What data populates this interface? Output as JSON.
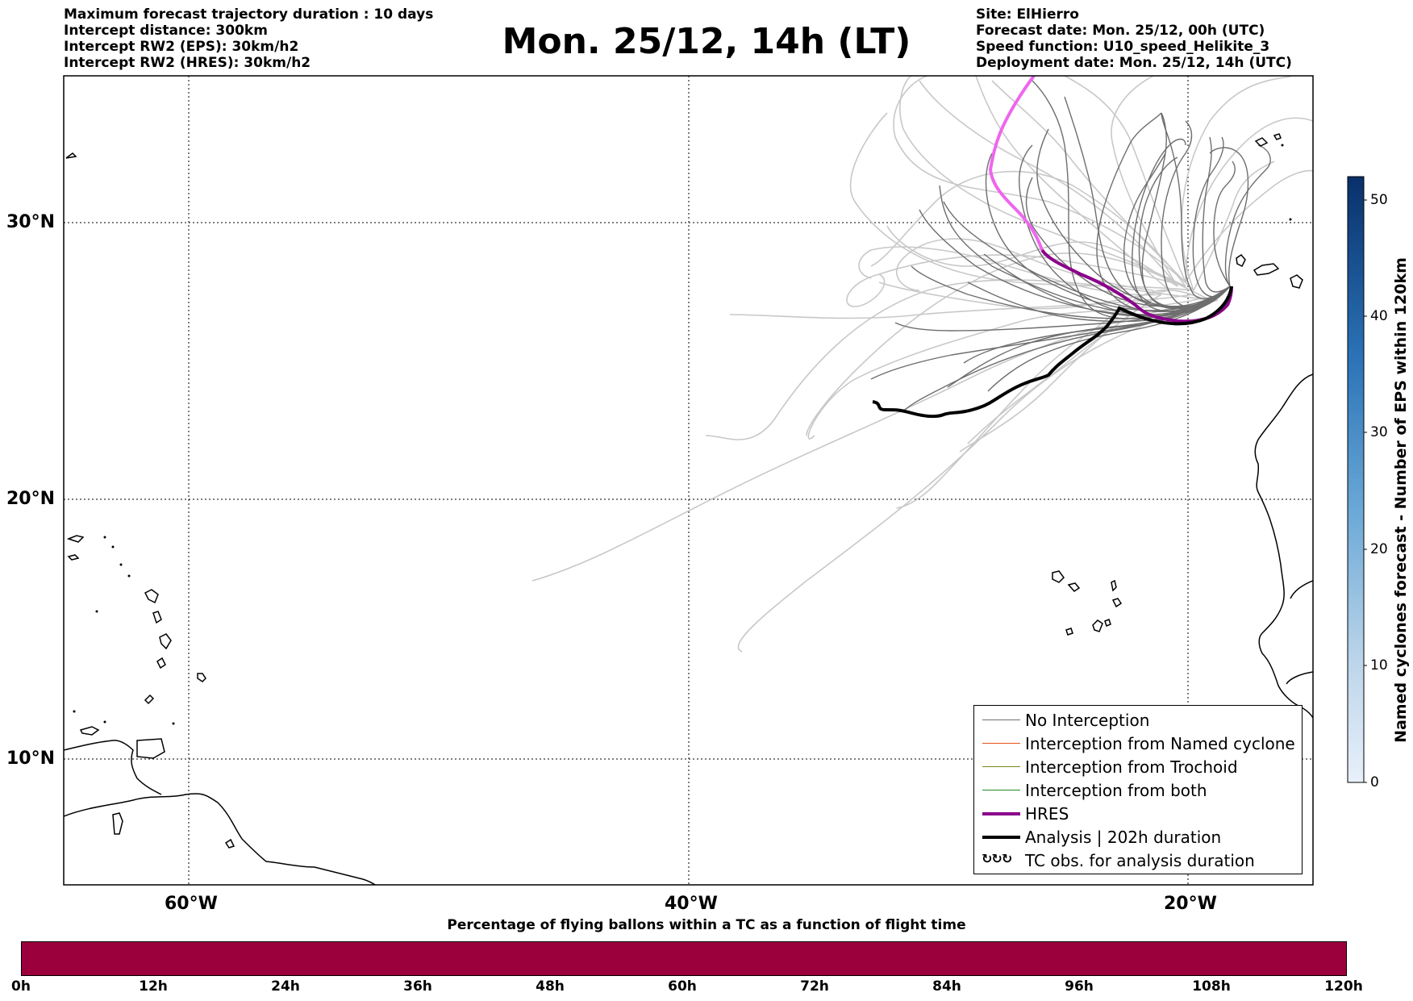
{
  "header": {
    "left": [
      "Maximum forecast trajectory duration : 10 days",
      "Intercept distance: 300km",
      "Intercept RW2 (EPS):  30km/h2",
      "Intercept RW2 (HRES): 30km/h2"
    ],
    "title": "Mon. 25/12, 14h (LT)",
    "right": [
      "Site: ElHierro",
      "Forecast date: Mon. 25/12, 00h (UTC)",
      "Speed function: U10_speed_Helikite_3",
      "Deployment date: Mon. 25/12, 14h (UTC)"
    ]
  },
  "map": {
    "lat_labels": [
      "30°N",
      "20°N",
      "10°N"
    ],
    "lon_labels": [
      "60°W",
      "40°W",
      "20°W"
    ],
    "colors": {
      "no_interception": "#707070",
      "faint_tracks": "#c8c8c8",
      "named_cyclone": "#e8501a",
      "trochoid": "#7a8a1a",
      "both": "#228b22",
      "hres": "#8b008b",
      "hres_early": "#ee66ee",
      "analysis": "#000000"
    }
  },
  "colorbar": {
    "title": "Named cyclones forecast - Number of EPS within 120km",
    "ticks": [
      "0",
      "10",
      "20",
      "30",
      "40",
      "50"
    ],
    "range": [
      0,
      52
    ],
    "color_low": "#e6eef8",
    "color_high": "#0b3a78"
  },
  "legend": {
    "items": [
      {
        "label": "No Interception",
        "color": "#707070",
        "width": 1
      },
      {
        "label": "Interception from Named cyclone",
        "color": "#e8501a",
        "width": 1
      },
      {
        "label": "Interception from Trochoid",
        "color": "#7a8a1a",
        "width": 1
      },
      {
        "label": "Interception from both",
        "color": "#228b22",
        "width": 1
      },
      {
        "label": "HRES",
        "color": "#8b008b",
        "width": 4
      },
      {
        "label": "Analysis | 202h duration",
        "color": "#000000",
        "width": 4
      }
    ],
    "obs": {
      "label": "TC obs. for analysis duration",
      "icon": "tc-symbols-icon"
    }
  },
  "timebar": {
    "title": "Percentage of flying ballons within a TC as a function of flight time",
    "ticks": [
      "0h",
      "12h",
      "24h",
      "36h",
      "48h",
      "60h",
      "72h",
      "84h",
      "96h",
      "108h",
      "120h"
    ],
    "color": "#9c003c"
  }
}
